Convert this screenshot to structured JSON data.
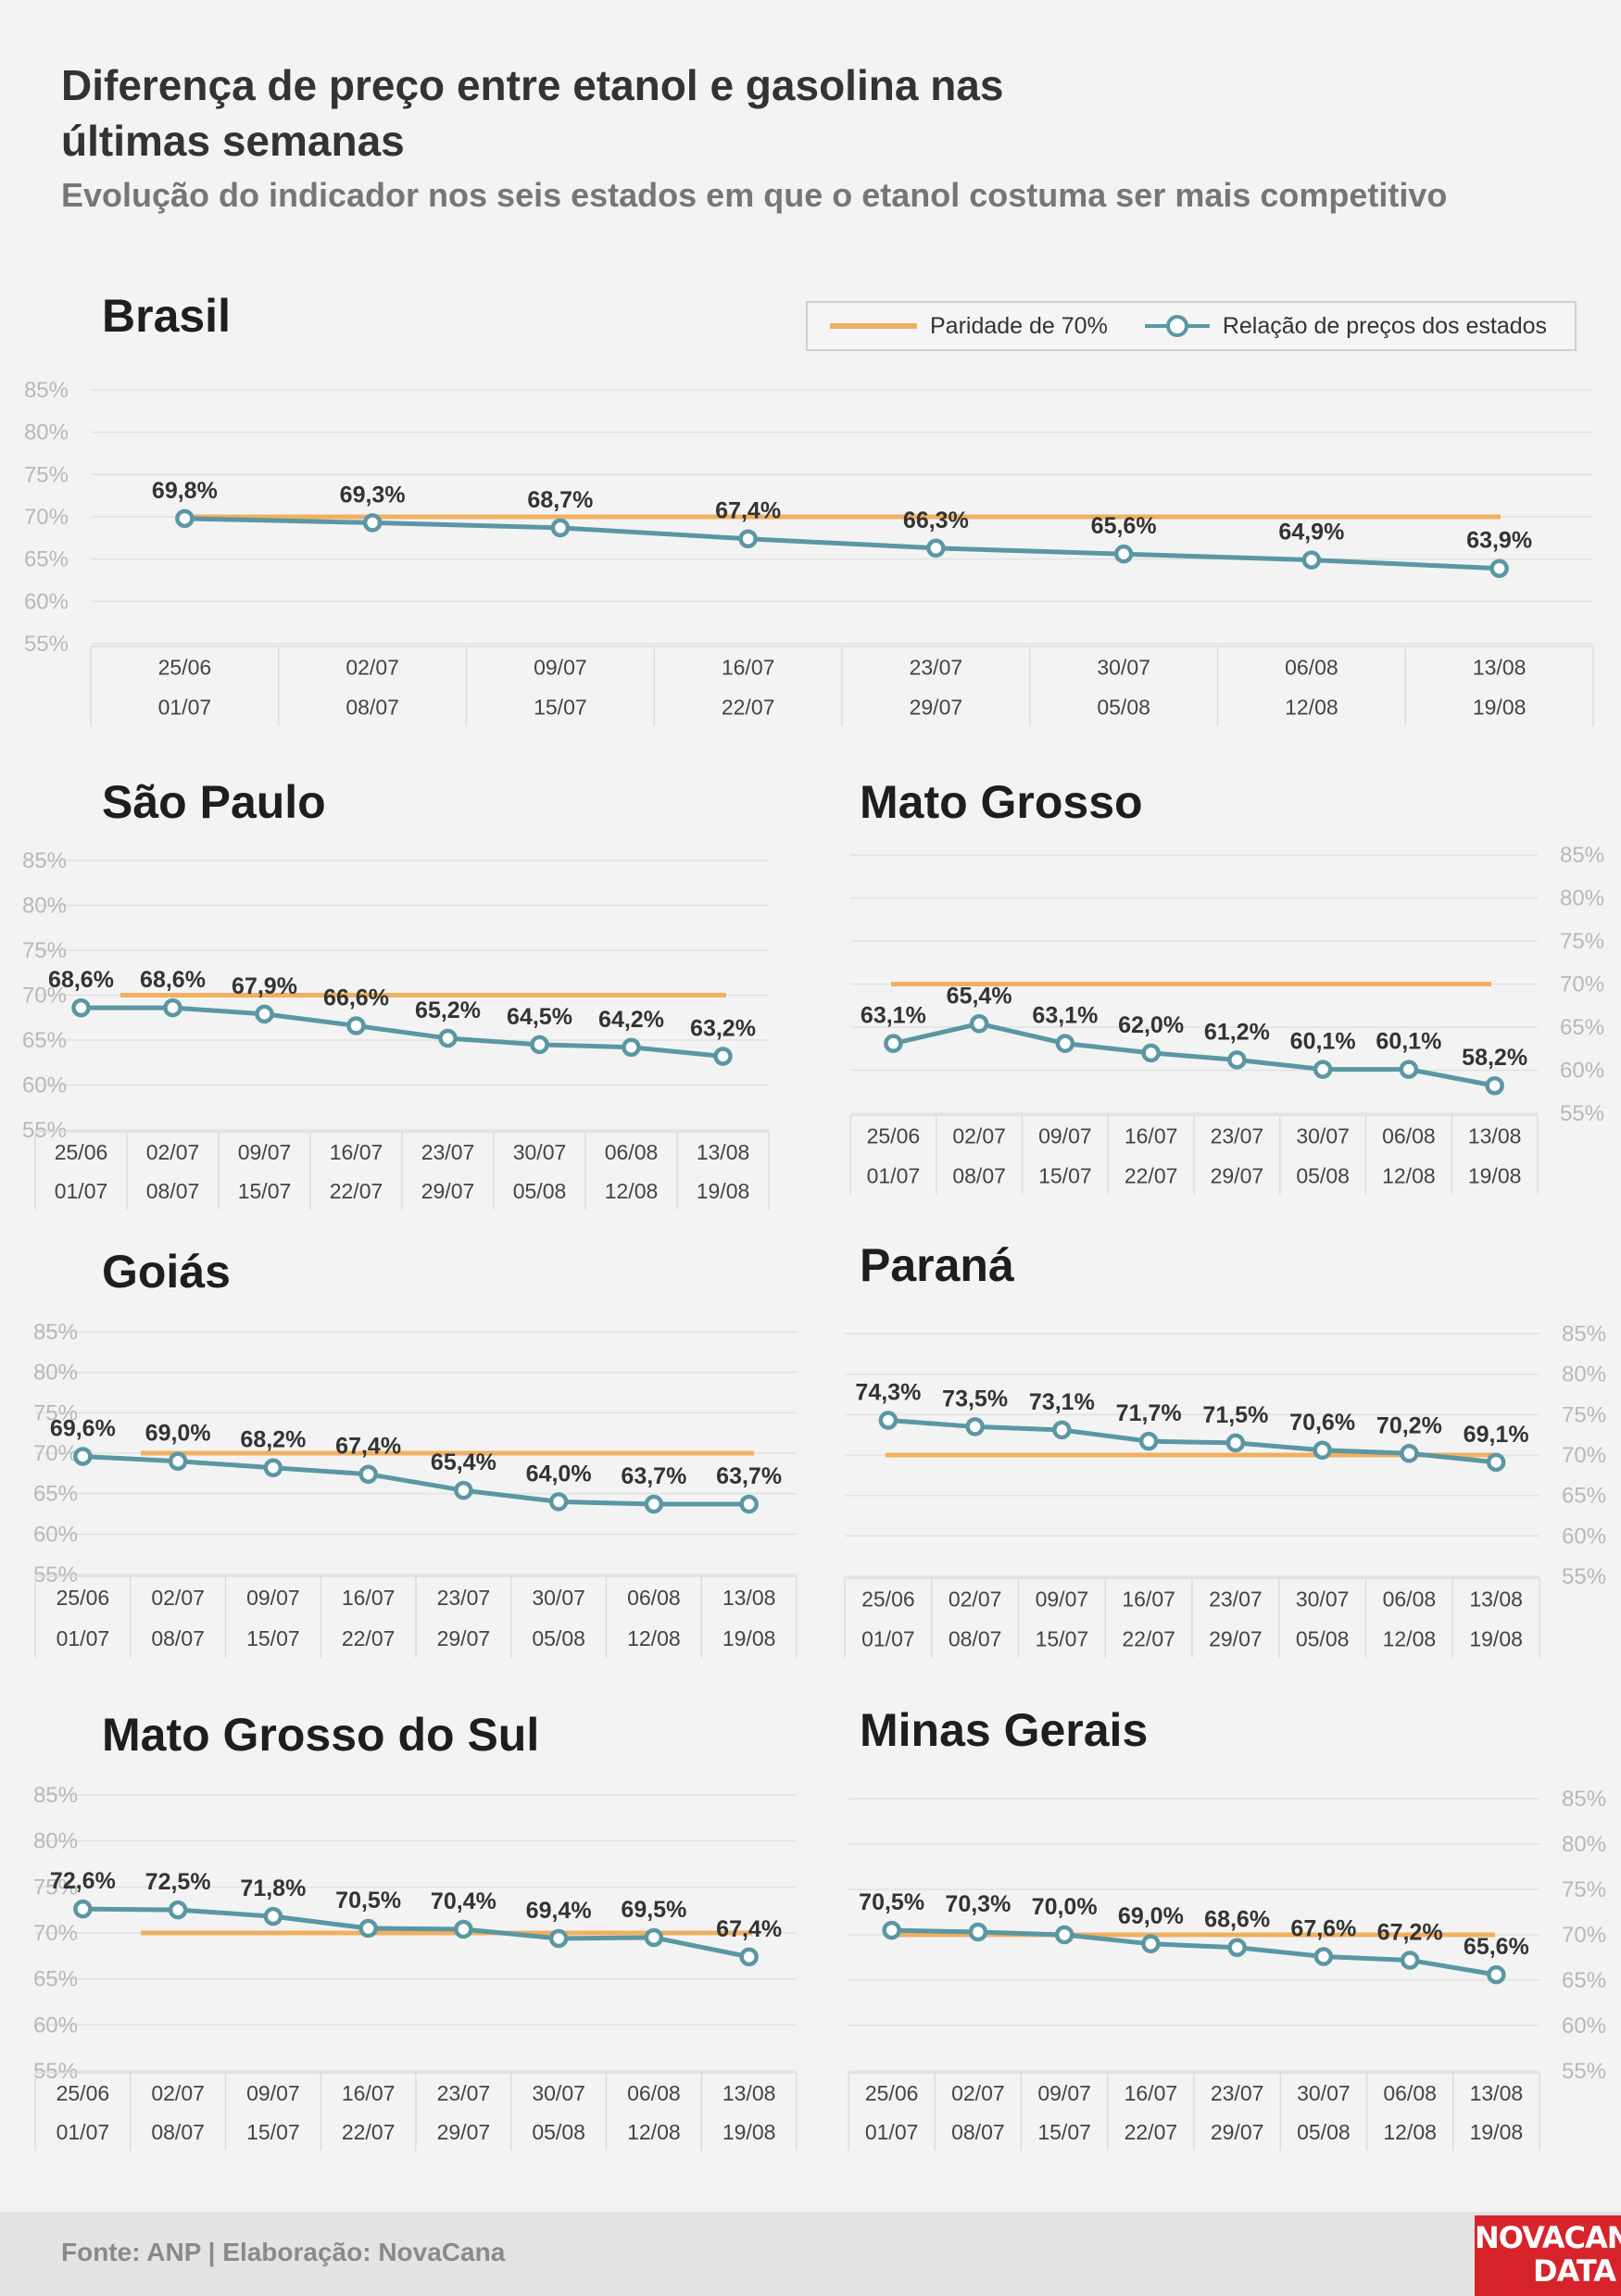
{
  "title": "Diferença de preço entre etanol e gasolina nas últimas semanas",
  "subtitle": "Evolução do indicador nos seis estados em que o etanol costuma ser mais competitivo",
  "legend": {
    "parity_label": "Paridade de 70%",
    "series_label": "Relação de preços dos estados"
  },
  "colors": {
    "parity": "#f0b060",
    "series": "#5a97a3",
    "grid": "#e2e2e2",
    "tick": "#b8b8b8",
    "label": "#333333"
  },
  "source": "Fonte: ANP | Elaboração: NovaCana",
  "logo": {
    "line1": "NOVACANA",
    "line2": "DATA"
  },
  "chart_data": [
    {
      "type": "line",
      "title": "Brasil",
      "categories": [
        [
          "25/06",
          "01/07"
        ],
        [
          "02/07",
          "08/07"
        ],
        [
          "09/07",
          "15/07"
        ],
        [
          "16/07",
          "22/07"
        ],
        [
          "23/07",
          "29/07"
        ],
        [
          "30/07",
          "05/08"
        ],
        [
          "06/08",
          "12/08"
        ],
        [
          "13/08",
          "19/08"
        ]
      ],
      "parity": 70,
      "values": [
        69.8,
        69.3,
        68.7,
        67.4,
        66.3,
        65.6,
        64.9,
        63.9
      ],
      "value_labels": [
        "69,8%",
        "69,3%",
        "68,7%",
        "67,4%",
        "66,3%",
        "65,6%",
        "64,9%",
        "63,9%"
      ],
      "yticks": [
        "55%",
        "60%",
        "65%",
        "70%",
        "75%",
        "80%",
        "85%"
      ],
      "ylim": [
        55,
        85
      ],
      "y_axis_side": "left",
      "legend": "top-right",
      "grid": true
    },
    {
      "type": "line",
      "title": "São Paulo",
      "categories": [
        [
          "25/06",
          "01/07"
        ],
        [
          "02/07",
          "08/07"
        ],
        [
          "09/07",
          "15/07"
        ],
        [
          "16/07",
          "22/07"
        ],
        [
          "23/07",
          "29/07"
        ],
        [
          "30/07",
          "05/08"
        ],
        [
          "06/08",
          "12/08"
        ],
        [
          "13/08",
          "19/08"
        ]
      ],
      "parity": 70,
      "values": [
        68.6,
        68.6,
        67.9,
        66.6,
        65.2,
        64.5,
        64.2,
        63.2
      ],
      "value_labels": [
        "68,6%",
        "68,6%",
        "67,9%",
        "66,6%",
        "65,2%",
        "64,5%",
        "64,2%",
        "63,2%"
      ],
      "yticks": [
        "55%",
        "60%",
        "65%",
        "70%",
        "75%",
        "80%",
        "85%"
      ],
      "ylim": [
        55,
        85
      ],
      "y_axis_side": "left",
      "grid": true
    },
    {
      "type": "line",
      "title": "Mato Grosso",
      "categories": [
        [
          "25/06",
          "01/07"
        ],
        [
          "02/07",
          "08/07"
        ],
        [
          "09/07",
          "15/07"
        ],
        [
          "16/07",
          "22/07"
        ],
        [
          "23/07",
          "29/07"
        ],
        [
          "30/07",
          "05/08"
        ],
        [
          "06/08",
          "12/08"
        ],
        [
          "13/08",
          "19/08"
        ]
      ],
      "parity": 70,
      "values": [
        63.1,
        65.4,
        63.1,
        62.0,
        61.2,
        60.1,
        60.1,
        58.2
      ],
      "value_labels": [
        "63,1%",
        "65,4%",
        "63,1%",
        "62,0%",
        "61,2%",
        "60,1%",
        "60,1%",
        "58,2%"
      ],
      "yticks": [
        "55%",
        "60%",
        "65%",
        "70%",
        "75%",
        "80%",
        "85%"
      ],
      "ylim": [
        55,
        85
      ],
      "y_axis_side": "right",
      "grid": true
    },
    {
      "type": "line",
      "title": "Goiás",
      "categories": [
        [
          "25/06",
          "01/07"
        ],
        [
          "02/07",
          "08/07"
        ],
        [
          "09/07",
          "15/07"
        ],
        [
          "16/07",
          "22/07"
        ],
        [
          "23/07",
          "29/07"
        ],
        [
          "30/07",
          "05/08"
        ],
        [
          "06/08",
          "12/08"
        ],
        [
          "13/08",
          "19/08"
        ]
      ],
      "parity": 70,
      "values": [
        69.6,
        69.0,
        68.2,
        67.4,
        65.4,
        64.0,
        63.7,
        63.7
      ],
      "value_labels": [
        "69,6%",
        "69,0%",
        "68,2%",
        "67,4%",
        "65,4%",
        "64,0%",
        "63,7%",
        "63,7%"
      ],
      "yticks": [
        "55%",
        "60%",
        "65%",
        "70%",
        "75%",
        "80%",
        "85%"
      ],
      "ylim": [
        55,
        85
      ],
      "y_axis_side": "left",
      "grid": true
    },
    {
      "type": "line",
      "title": "Paraná",
      "categories": [
        [
          "25/06",
          "01/07"
        ],
        [
          "02/07",
          "08/07"
        ],
        [
          "09/07",
          "15/07"
        ],
        [
          "16/07",
          "22/07"
        ],
        [
          "23/07",
          "29/07"
        ],
        [
          "30/07",
          "05/08"
        ],
        [
          "06/08",
          "12/08"
        ],
        [
          "13/08",
          "19/08"
        ]
      ],
      "parity": 70,
      "values": [
        74.3,
        73.5,
        73.1,
        71.7,
        71.5,
        70.6,
        70.2,
        69.1
      ],
      "value_labels": [
        "74,3%",
        "73,5%",
        "73,1%",
        "71,7%",
        "71,5%",
        "70,6%",
        "70,2%",
        "69,1%"
      ],
      "yticks": [
        "55%",
        "60%",
        "65%",
        "70%",
        "75%",
        "80%",
        "85%"
      ],
      "ylim": [
        55,
        85
      ],
      "y_axis_side": "right",
      "grid": true
    },
    {
      "type": "line",
      "title": "Mato Grosso do Sul",
      "categories": [
        [
          "25/06",
          "01/07"
        ],
        [
          "02/07",
          "08/07"
        ],
        [
          "09/07",
          "15/07"
        ],
        [
          "16/07",
          "22/07"
        ],
        [
          "23/07",
          "29/07"
        ],
        [
          "30/07",
          "05/08"
        ],
        [
          "06/08",
          "12/08"
        ],
        [
          "13/08",
          "19/08"
        ]
      ],
      "parity": 70,
      "values": [
        72.6,
        72.5,
        71.8,
        70.5,
        70.4,
        69.4,
        69.5,
        67.4
      ],
      "value_labels": [
        "72,6%",
        "72,5%",
        "71,8%",
        "70,5%",
        "70,4%",
        "69,4%",
        "69,5%",
        "67,4%"
      ],
      "yticks": [
        "55%",
        "60%",
        "65%",
        "70%",
        "75%",
        "80%",
        "85%"
      ],
      "ylim": [
        55,
        85
      ],
      "y_axis_side": "left",
      "grid": true
    },
    {
      "type": "line",
      "title": "Minas Gerais",
      "categories": [
        [
          "25/06",
          "01/07"
        ],
        [
          "02/07",
          "08/07"
        ],
        [
          "09/07",
          "15/07"
        ],
        [
          "16/07",
          "22/07"
        ],
        [
          "23/07",
          "29/07"
        ],
        [
          "30/07",
          "05/08"
        ],
        [
          "06/08",
          "12/08"
        ],
        [
          "13/08",
          "19/08"
        ]
      ],
      "parity": 70,
      "values": [
        70.5,
        70.3,
        70.0,
        69.0,
        68.6,
        67.6,
        67.2,
        65.6
      ],
      "value_labels": [
        "70,5%",
        "70,3%",
        "70,0%",
        "69,0%",
        "68,6%",
        "67,6%",
        "67,2%",
        "65,6%"
      ],
      "yticks": [
        "55%",
        "60%",
        "65%",
        "70%",
        "75%",
        "80%",
        "85%"
      ],
      "ylim": [
        55,
        85
      ],
      "y_axis_side": "right",
      "grid": true
    }
  ]
}
